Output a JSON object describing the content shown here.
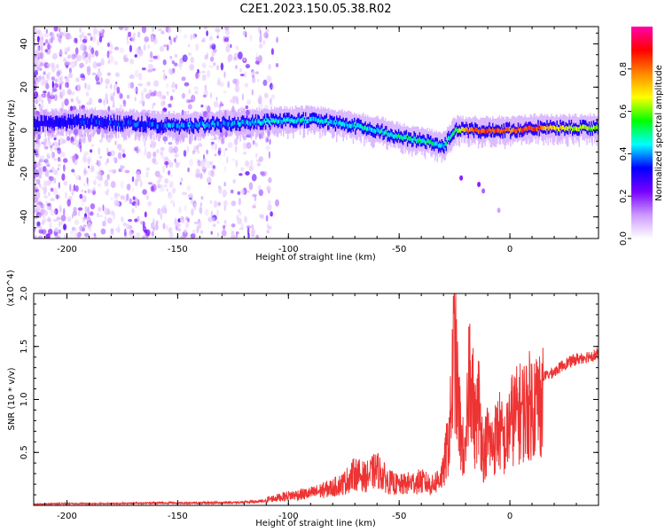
{
  "title": "C2E1.2023.150.05.38.R02",
  "chart_data": [
    {
      "type": "heatmap",
      "xlabel": "Height of straight line (km)",
      "ylabel": "Frequency (Hz)",
      "xlim": [
        -215,
        40
      ],
      "ylim": [
        -50,
        48
      ],
      "xticks": [
        -200,
        -150,
        -100,
        -50,
        0
      ],
      "yticks": [
        -40,
        -20,
        0,
        20,
        40
      ],
      "colorbar": {
        "label": "Normalized spectral amplitude",
        "range": [
          0.0,
          1.0
        ],
        "ticks": [
          0.0,
          0.2,
          0.4,
          0.6,
          0.8
        ],
        "colormap": [
          "#ffffff",
          "#cc99ff",
          "#7700ff",
          "#0000ff",
          "#00ffff",
          "#00ff00",
          "#ffff00",
          "#ff8800",
          "#ff0000",
          "#ff00aa"
        ]
      },
      "ridge": {
        "x": [
          -215,
          -190,
          -170,
          -150,
          -130,
          -110,
          -90,
          -70,
          -60,
          -50,
          -40,
          -30,
          -25,
          -20,
          -10,
          0,
          10,
          20,
          30,
          40
        ],
        "frequency": [
          3,
          4,
          3,
          2,
          3,
          4,
          5,
          2,
          0,
          -3,
          -5,
          -7,
          0,
          0,
          0,
          0,
          1,
          1,
          1,
          1
        ],
        "amplitude": [
          0.3,
          0.4,
          0.4,
          0.45,
          0.45,
          0.5,
          0.5,
          0.5,
          0.5,
          0.55,
          0.55,
          0.5,
          0.6,
          0.85,
          0.9,
          0.85,
          0.9,
          0.75,
          0.7,
          0.65
        ]
      },
      "grid": false
    },
    {
      "type": "line",
      "xlabel": "Height of straight line (km)",
      "ylabel": "SNR (10 * v/v)",
      "y_multiplier": "(x10^4)",
      "xlim": [
        -215,
        40
      ],
      "ylim": [
        0,
        20000
      ],
      "xticks": [
        -200,
        -150,
        -100,
        -50,
        0
      ],
      "yticks": [
        5000,
        10000,
        15000,
        20000
      ],
      "ytick_labels": [
        "0.5",
        "1.0",
        "1.5",
        "2.0"
      ],
      "series": [
        {
          "color": "#ee3333",
          "x": [
            -215,
            -200,
            -180,
            -160,
            -140,
            -120,
            -110,
            -100,
            -90,
            -80,
            -75,
            -70,
            -65,
            -60,
            -55,
            -50,
            -45,
            -40,
            -35,
            -30,
            -27,
            -25,
            -24,
            -22,
            -20,
            -18,
            -16,
            -14,
            -12,
            -10,
            -8,
            -5,
            -2,
            0,
            5,
            10,
            15,
            20,
            25,
            30,
            35,
            40
          ],
          "y": [
            200,
            300,
            300,
            400,
            400,
            500,
            700,
            1200,
            1500,
            2200,
            2800,
            4000,
            3500,
            4500,
            3000,
            2500,
            2800,
            3000,
            2500,
            4000,
            9000,
            20000,
            14000,
            8000,
            5000,
            19000,
            9000,
            12000,
            6000,
            8000,
            7000,
            9000,
            7000,
            10000,
            11000,
            12000,
            12500,
            13000,
            13800,
            14200,
            14500,
            14700
          ]
        }
      ],
      "grid": false
    }
  ]
}
